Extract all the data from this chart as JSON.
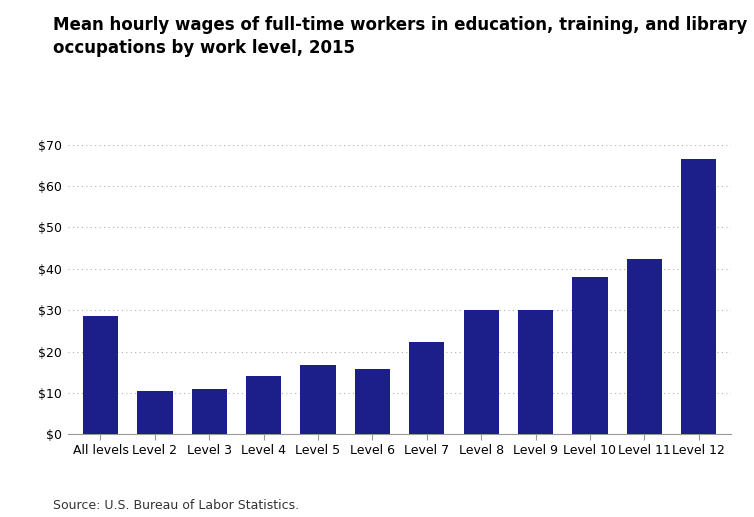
{
  "title_line1": "Mean hourly wages of full-time workers in education, training, and library",
  "title_line2": "occupations by work level, 2015",
  "categories": [
    "All levels",
    "Level 2",
    "Level 3",
    "Level 4",
    "Level 5",
    "Level 6",
    "Level 7",
    "Level 8",
    "Level 9",
    "Level 10",
    "Level 11",
    "Level 12"
  ],
  "values": [
    28.5,
    10.5,
    11.0,
    14.0,
    16.7,
    15.8,
    22.3,
    30.0,
    30.0,
    38.0,
    42.3,
    66.5
  ],
  "bar_color": "#1c1f8a",
  "ylim": [
    0,
    70
  ],
  "yticks": [
    0,
    10,
    20,
    30,
    40,
    50,
    60,
    70
  ],
  "ytick_labels": [
    "$0",
    "$10",
    "$20",
    "$30",
    "$40",
    "$50",
    "$60",
    "$70"
  ],
  "source_text": "Source: U.S. Bureau of Labor Statistics.",
  "title_fontsize": 12,
  "tick_fontsize": 9,
  "source_fontsize": 9,
  "background_color": "#ffffff",
  "grid_color": "#b0b0b0"
}
